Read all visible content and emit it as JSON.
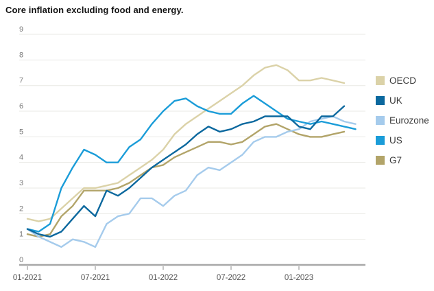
{
  "title": "Core inflation excluding food and energy.",
  "colors": {
    "background": "#ffffff",
    "grid": "#e9e9e4",
    "axis": "#a8a8a8",
    "title_text": "#111111",
    "axis_label_text": "#7a7a7a",
    "legend_text": "#3d3d3d"
  },
  "chart_data": {
    "type": "line",
    "title": "Core inflation excluding food and energy.",
    "xlabel": "",
    "ylabel": "",
    "ylim": [
      0,
      9
    ],
    "y_ticks": [
      0,
      1,
      2,
      3,
      4,
      5,
      6,
      7,
      8,
      9
    ],
    "grid": "horizontal",
    "legend_position": "right",
    "x": [
      "01-2021",
      "02-2021",
      "03-2021",
      "04-2021",
      "05-2021",
      "06-2021",
      "07-2021",
      "08-2021",
      "09-2021",
      "10-2021",
      "11-2021",
      "12-2021",
      "01-2022",
      "02-2022",
      "03-2022",
      "04-2022",
      "05-2022",
      "06-2022",
      "07-2022",
      "08-2022",
      "09-2022",
      "10-2022",
      "11-2022",
      "12-2022",
      "01-2023",
      "02-2023",
      "03-2023",
      "04-2023",
      "05-2023",
      "06-2023"
    ],
    "x_tick_labels": [
      "01-2021",
      "07-2021",
      "01-2022",
      "07-2022",
      "01-2023"
    ],
    "series": [
      {
        "name": "OECD",
        "color": "#dbd2a8",
        "values": [
          1.8,
          1.7,
          1.8,
          2.2,
          2.6,
          3.0,
          3.0,
          3.1,
          3.2,
          3.5,
          3.8,
          4.1,
          4.5,
          5.1,
          5.5,
          5.8,
          6.1,
          6.4,
          6.7,
          7.0,
          7.4,
          7.7,
          7.8,
          7.6,
          7.2,
          7.2,
          7.3,
          7.2,
          7.1,
          null
        ]
      },
      {
        "name": "UK",
        "color": "#0b689e",
        "values": [
          1.4,
          1.2,
          1.1,
          1.3,
          1.8,
          2.3,
          1.9,
          2.9,
          2.7,
          3.0,
          3.4,
          3.8,
          4.1,
          4.4,
          4.7,
          5.1,
          5.4,
          5.2,
          5.3,
          5.5,
          5.6,
          5.8,
          5.8,
          5.8,
          5.4,
          5.3,
          5.8,
          5.8,
          6.2,
          null
        ]
      },
      {
        "name": "Eurozone",
        "color": "#a5cbec",
        "values": [
          1.4,
          1.1,
          0.9,
          0.7,
          1.0,
          0.9,
          0.7,
          1.6,
          1.9,
          2.0,
          2.6,
          2.6,
          2.3,
          2.7,
          2.9,
          3.5,
          3.8,
          3.7,
          4.0,
          4.3,
          4.8,
          5.0,
          5.0,
          5.2,
          5.3,
          5.6,
          5.7,
          5.8,
          5.6,
          5.5
        ]
      },
      {
        "name": "US",
        "color": "#1a9cd8",
        "values": [
          1.4,
          1.3,
          1.6,
          3.0,
          3.8,
          4.5,
          4.3,
          4.0,
          4.0,
          4.6,
          4.9,
          5.5,
          6.0,
          6.4,
          6.5,
          6.2,
          6.0,
          5.9,
          5.9,
          6.3,
          6.6,
          6.3,
          6.0,
          5.7,
          5.6,
          5.5,
          5.6,
          5.5,
          5.4,
          5.3
        ]
      },
      {
        "name": "G7",
        "color": "#b2a469",
        "values": [
          1.2,
          1.1,
          1.2,
          1.9,
          2.3,
          2.9,
          2.9,
          2.9,
          3.0,
          3.2,
          3.5,
          3.8,
          3.9,
          4.2,
          4.4,
          4.6,
          4.8,
          4.8,
          4.7,
          4.8,
          5.1,
          5.4,
          5.5,
          5.3,
          5.1,
          5.0,
          5.0,
          5.1,
          5.2,
          null
        ]
      }
    ]
  }
}
